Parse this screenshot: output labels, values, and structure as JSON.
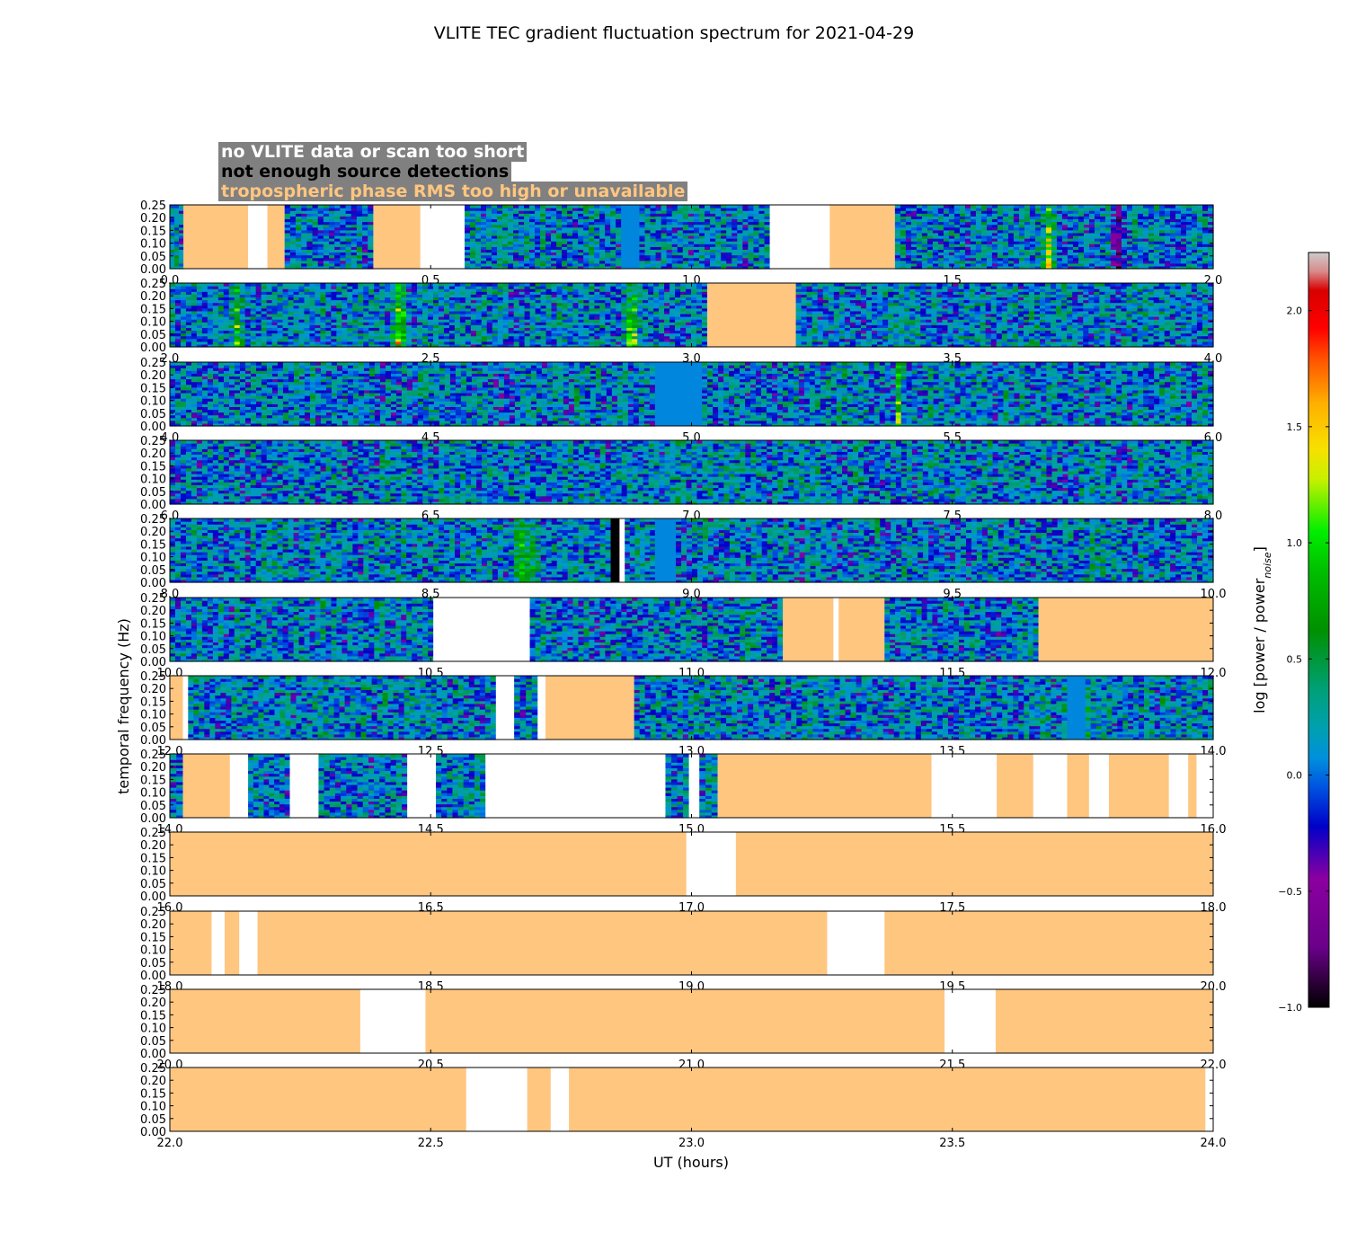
{
  "colors": {
    "tropo": "#ffc680",
    "nodata": "#ffffff",
    "nodet": "#000000",
    "legend_bg": "#808080"
  },
  "legend": {
    "no_data": "no VLITE data or scan too short",
    "no_detections": "not enough source detections",
    "tropo": "tropospheric phase RMS too high or unavailable"
  },
  "chart_data": {
    "type": "heatmap",
    "title": "VLITE TEC gradient fluctuation spectrum for 2021-04-29",
    "xlabel": "UT (hours)",
    "ylabel": "temporal frequency (Hz)",
    "colorbar_label": "log [power / power",
    "colorbar_label_sub": "noise",
    "colorbar_label_end": "]",
    "colorbar_range": [
      -1.0,
      2.25
    ],
    "colorbar_ticks": [
      "−1.0",
      "−0.5",
      "0.0",
      "0.5",
      "1.0",
      "1.5",
      "2.0"
    ],
    "colorbar_tick_values": [
      -1.0,
      -0.5,
      0.0,
      0.5,
      1.0,
      1.5,
      2.0
    ],
    "ylim": [
      0,
      0.25
    ],
    "yticks": [
      "0.00",
      "0.05",
      "0.10",
      "0.15",
      "0.20",
      "0.25"
    ],
    "panels": [
      {
        "xlim": [
          0,
          2
        ],
        "xticks": [
          "0.0",
          "0.5",
          "1.0",
          "1.5",
          "2.0"
        ],
        "segments": [
          {
            "start": 0.0,
            "end": 0.026,
            "kind": "spectrum"
          },
          {
            "start": 0.026,
            "end": 0.15,
            "kind": "tropo"
          },
          {
            "start": 0.15,
            "end": 0.187,
            "kind": "nodata"
          },
          {
            "start": 0.187,
            "end": 0.22,
            "kind": "tropo"
          },
          {
            "start": 0.22,
            "end": 0.39,
            "kind": "spectrum"
          },
          {
            "start": 0.39,
            "end": 0.48,
            "kind": "tropo"
          },
          {
            "start": 0.48,
            "end": 0.565,
            "kind": "nodata"
          },
          {
            "start": 0.565,
            "end": 0.865,
            "kind": "spectrum"
          },
          {
            "start": 0.865,
            "end": 0.9,
            "kind": "uniform",
            "level": 0.05
          },
          {
            "start": 0.9,
            "end": 1.15,
            "kind": "spectrum"
          },
          {
            "start": 1.15,
            "end": 1.265,
            "kind": "nodata"
          },
          {
            "start": 1.265,
            "end": 1.39,
            "kind": "tropo"
          },
          {
            "start": 1.39,
            "end": 2.0,
            "kind": "spectrum"
          }
        ]
      },
      {
        "xlim": [
          2,
          4
        ],
        "xticks": [
          "2.0",
          "2.5",
          "3.0",
          "3.5",
          "4.0"
        ],
        "segments": [
          {
            "start": 2.0,
            "end": 3.03,
            "kind": "spectrum"
          },
          {
            "start": 3.03,
            "end": 3.2,
            "kind": "tropo"
          },
          {
            "start": 3.2,
            "end": 4.0,
            "kind": "spectrum"
          }
        ]
      },
      {
        "xlim": [
          4,
          6
        ],
        "xticks": [
          "4.0",
          "4.5",
          "5.0",
          "5.5",
          "6.0"
        ],
        "segments": [
          {
            "start": 4.0,
            "end": 4.93,
            "kind": "spectrum"
          },
          {
            "start": 4.93,
            "end": 5.02,
            "kind": "uniform",
            "level": 0.05
          },
          {
            "start": 5.02,
            "end": 6.0,
            "kind": "spectrum"
          }
        ]
      },
      {
        "xlim": [
          6,
          8
        ],
        "xticks": [
          "6.0",
          "6.5",
          "7.0",
          "7.5",
          "8.0"
        ],
        "segments": [
          {
            "start": 6.0,
            "end": 8.0,
            "kind": "spectrum"
          }
        ]
      },
      {
        "xlim": [
          8,
          10
        ],
        "xticks": [
          "8.0",
          "8.5",
          "9.0",
          "9.5",
          "10.0"
        ],
        "segments": [
          {
            "start": 8.0,
            "end": 8.845,
            "kind": "spectrum"
          },
          {
            "start": 8.845,
            "end": 8.862,
            "kind": "nodet"
          },
          {
            "start": 8.862,
            "end": 8.872,
            "kind": "nodata"
          },
          {
            "start": 8.872,
            "end": 8.93,
            "kind": "spectrum"
          },
          {
            "start": 8.93,
            "end": 8.97,
            "kind": "uniform",
            "level": 0.05
          },
          {
            "start": 8.97,
            "end": 10.0,
            "kind": "spectrum"
          }
        ]
      },
      {
        "xlim": [
          10,
          12
        ],
        "xticks": [
          "10.0",
          "10.5",
          "11.0",
          "11.5",
          "12.0"
        ],
        "segments": [
          {
            "start": 10.0,
            "end": 10.505,
            "kind": "spectrum"
          },
          {
            "start": 10.505,
            "end": 10.69,
            "kind": "nodata"
          },
          {
            "start": 10.69,
            "end": 11.175,
            "kind": "spectrum"
          },
          {
            "start": 11.175,
            "end": 11.272,
            "kind": "tropo"
          },
          {
            "start": 11.272,
            "end": 11.282,
            "kind": "nodata"
          },
          {
            "start": 11.282,
            "end": 11.37,
            "kind": "tropo"
          },
          {
            "start": 11.37,
            "end": 11.665,
            "kind": "spectrum"
          },
          {
            "start": 11.665,
            "end": 12.0,
            "kind": "tropo"
          }
        ]
      },
      {
        "xlim": [
          12,
          14
        ],
        "xticks": [
          "12.0",
          "12.5",
          "13.0",
          "13.5",
          "14.0"
        ],
        "segments": [
          {
            "start": 12.0,
            "end": 12.025,
            "kind": "tropo"
          },
          {
            "start": 12.025,
            "end": 12.035,
            "kind": "nodata"
          },
          {
            "start": 12.035,
            "end": 12.625,
            "kind": "spectrum"
          },
          {
            "start": 12.625,
            "end": 12.66,
            "kind": "nodata"
          },
          {
            "start": 12.66,
            "end": 12.705,
            "kind": "spectrum"
          },
          {
            "start": 12.705,
            "end": 12.72,
            "kind": "nodata"
          },
          {
            "start": 12.72,
            "end": 12.89,
            "kind": "tropo"
          },
          {
            "start": 12.89,
            "end": 13.72,
            "kind": "spectrum"
          },
          {
            "start": 13.72,
            "end": 13.755,
            "kind": "uniform",
            "level": 0.05
          },
          {
            "start": 13.755,
            "end": 14.0,
            "kind": "spectrum"
          }
        ]
      },
      {
        "xlim": [
          14,
          16
        ],
        "xticks": [
          "14.0",
          "14.5",
          "15.0",
          "15.5",
          "16.0"
        ],
        "segments": [
          {
            "start": 14.0,
            "end": 14.025,
            "kind": "spectrum"
          },
          {
            "start": 14.025,
            "end": 14.115,
            "kind": "tropo"
          },
          {
            "start": 14.115,
            "end": 14.15,
            "kind": "nodata"
          },
          {
            "start": 14.15,
            "end": 14.23,
            "kind": "spectrum"
          },
          {
            "start": 14.23,
            "end": 14.285,
            "kind": "nodata"
          },
          {
            "start": 14.285,
            "end": 14.455,
            "kind": "spectrum"
          },
          {
            "start": 14.455,
            "end": 14.51,
            "kind": "nodata"
          },
          {
            "start": 14.51,
            "end": 14.605,
            "kind": "spectrum"
          },
          {
            "start": 14.605,
            "end": 14.95,
            "kind": "nodata"
          },
          {
            "start": 14.95,
            "end": 14.995,
            "kind": "spectrum"
          },
          {
            "start": 14.995,
            "end": 15.015,
            "kind": "nodata"
          },
          {
            "start": 15.015,
            "end": 15.05,
            "kind": "spectrum"
          },
          {
            "start": 15.05,
            "end": 15.46,
            "kind": "tropo"
          },
          {
            "start": 15.46,
            "end": 15.585,
            "kind": "nodata"
          },
          {
            "start": 15.585,
            "end": 15.655,
            "kind": "tropo"
          },
          {
            "start": 15.655,
            "end": 15.72,
            "kind": "nodata"
          },
          {
            "start": 15.72,
            "end": 15.762,
            "kind": "tropo"
          },
          {
            "start": 15.762,
            "end": 15.8,
            "kind": "nodata"
          },
          {
            "start": 15.8,
            "end": 15.915,
            "kind": "tropo"
          },
          {
            "start": 15.915,
            "end": 15.952,
            "kind": "nodata"
          },
          {
            "start": 15.952,
            "end": 15.968,
            "kind": "tropo"
          },
          {
            "start": 15.968,
            "end": 16.0,
            "kind": "nodata"
          }
        ]
      },
      {
        "xlim": [
          16,
          18
        ],
        "xticks": [
          "16.0",
          "16.5",
          "17.0",
          "17.5",
          "18.0"
        ],
        "segments": [
          {
            "start": 16.0,
            "end": 16.99,
            "kind": "tropo"
          },
          {
            "start": 16.99,
            "end": 17.085,
            "kind": "nodata"
          },
          {
            "start": 17.085,
            "end": 18.0,
            "kind": "tropo"
          }
        ]
      },
      {
        "xlim": [
          18,
          20
        ],
        "xticks": [
          "18.0",
          "18.5",
          "19.0",
          "19.5",
          "20.0"
        ],
        "segments": [
          {
            "start": 18.0,
            "end": 18.08,
            "kind": "tropo"
          },
          {
            "start": 18.08,
            "end": 18.105,
            "kind": "nodata"
          },
          {
            "start": 18.105,
            "end": 18.133,
            "kind": "tropo"
          },
          {
            "start": 18.133,
            "end": 18.168,
            "kind": "nodata"
          },
          {
            "start": 18.168,
            "end": 19.26,
            "kind": "tropo"
          },
          {
            "start": 19.26,
            "end": 19.37,
            "kind": "nodata"
          },
          {
            "start": 19.37,
            "end": 20.0,
            "kind": "tropo"
          }
        ]
      },
      {
        "xlim": [
          20,
          22
        ],
        "xticks": [
          "20.0",
          "20.5",
          "21.0",
          "21.5",
          "22.0"
        ],
        "segments": [
          {
            "start": 20.0,
            "end": 20.365,
            "kind": "tropo"
          },
          {
            "start": 20.365,
            "end": 20.49,
            "kind": "nodata"
          },
          {
            "start": 20.49,
            "end": 21.485,
            "kind": "tropo"
          },
          {
            "start": 21.485,
            "end": 21.583,
            "kind": "nodata"
          },
          {
            "start": 21.583,
            "end": 22.0,
            "kind": "tropo"
          }
        ]
      },
      {
        "xlim": [
          22,
          24
        ],
        "xticks": [
          "22.0",
          "22.5",
          "23.0",
          "23.5",
          "24.0"
        ],
        "segments": [
          {
            "start": 22.0,
            "end": 22.568,
            "kind": "tropo"
          },
          {
            "start": 22.568,
            "end": 22.685,
            "kind": "nodata"
          },
          {
            "start": 22.685,
            "end": 22.73,
            "kind": "tropo"
          },
          {
            "start": 22.73,
            "end": 22.765,
            "kind": "nodata"
          },
          {
            "start": 22.765,
            "end": 23.985,
            "kind": "tropo"
          },
          {
            "start": 23.985,
            "end": 24.0,
            "kind": "nodata"
          }
        ]
      }
    ],
    "hotspots": [
      {
        "t": 1.685,
        "level": 1.2,
        "width": 0.018
      },
      {
        "t": 2.13,
        "level": 0.95,
        "width": 0.014
      },
      {
        "t": 2.44,
        "level": 1.25,
        "width": 0.018
      },
      {
        "t": 2.885,
        "level": 1.1,
        "width": 0.016
      },
      {
        "t": 5.395,
        "level": 1.2,
        "width": 0.008
      },
      {
        "t": 8.68,
        "level": 0.8,
        "width": 0.03
      },
      {
        "t": 13.75,
        "level": 0.9,
        "width": 0.02
      }
    ],
    "coldspots": [
      {
        "t": 1.82,
        "level": -0.55,
        "width": 0.02
      },
      {
        "t": 4.65,
        "level": -0.35,
        "width": 0.02
      }
    ]
  }
}
